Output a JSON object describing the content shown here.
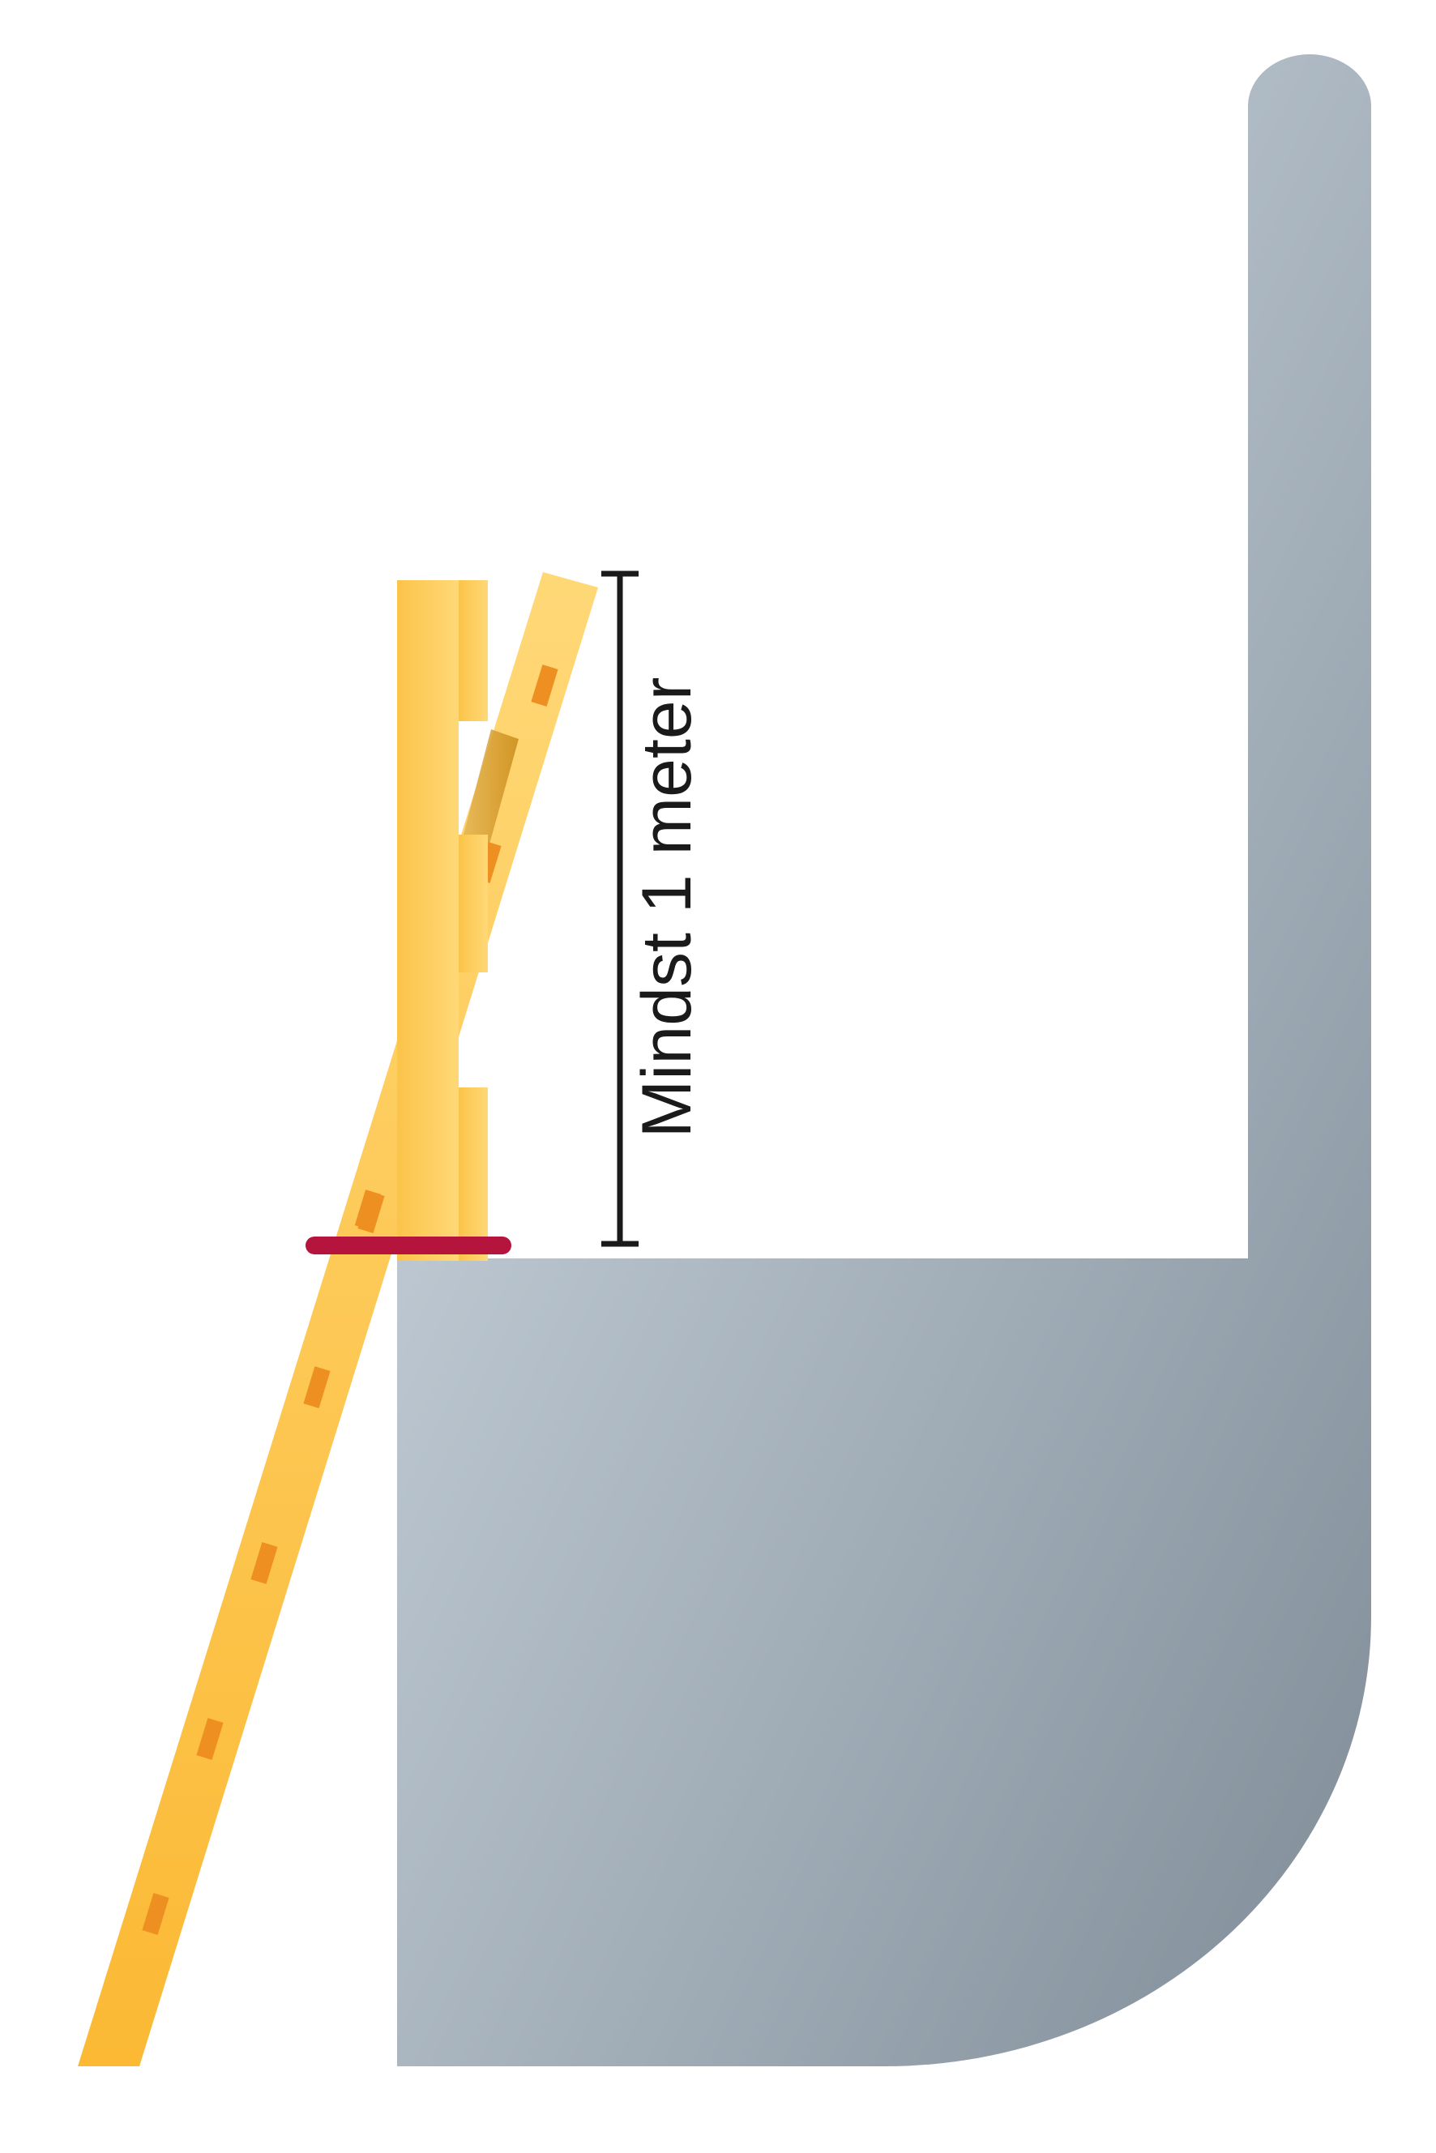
{
  "measurement": {
    "label": "Mindst 1 meter"
  },
  "colors": {
    "wall_light": "#d3dde6",
    "wall_dark": "#7f8d98",
    "ladder_light": "#ffd36a",
    "ladder_dark": "#f7ad2a",
    "rung": "#ee8f22",
    "tie_band": "#b5153c",
    "dimension_line": "#1a1a1a"
  }
}
